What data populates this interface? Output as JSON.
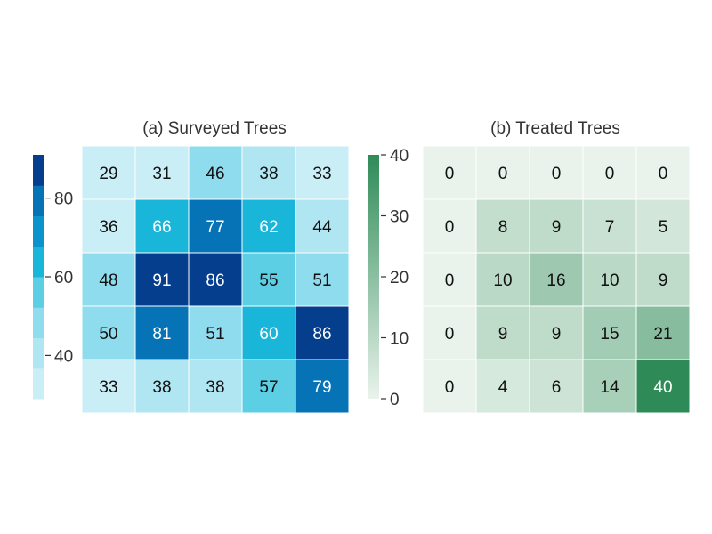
{
  "chart_data": [
    {
      "type": "heatmap",
      "title": "(a) Surveyed Trees",
      "rows": 5,
      "cols": 5,
      "values": [
        [
          29,
          31,
          46,
          38,
          33
        ],
        [
          36,
          66,
          77,
          62,
          44
        ],
        [
          48,
          91,
          86,
          55,
          51
        ],
        [
          50,
          81,
          51,
          60,
          86
        ],
        [
          33,
          38,
          38,
          57,
          79
        ]
      ],
      "colorbar": {
        "range": [
          29,
          91
        ],
        "ticks": [
          40,
          60,
          80
        ],
        "tick_labels": [
          "40",
          "60",
          "80"
        ],
        "side": "left",
        "discrete": true,
        "levels": 8
      },
      "colormap": [
        "#c9eef6",
        "#b0e5f2",
        "#8edcee",
        "#5ccfe5",
        "#1ab6d9",
        "#0a94cb",
        "#0573b5",
        "#043e8d"
      ],
      "text_color_dark": "#111111",
      "text_color_light": "#ffffff"
    },
    {
      "type": "heatmap",
      "title": "(b) Treated Trees",
      "rows": 5,
      "cols": 5,
      "values": [
        [
          0,
          0,
          0,
          0,
          0
        ],
        [
          0,
          8,
          9,
          7,
          5
        ],
        [
          0,
          10,
          16,
          10,
          9
        ],
        [
          0,
          9,
          9,
          15,
          21
        ],
        [
          0,
          4,
          6,
          14,
          40
        ]
      ],
      "colorbar": {
        "range": [
          0,
          40
        ],
        "ticks": [
          0,
          10,
          20,
          30,
          40
        ],
        "tick_labels": [
          "0",
          "10",
          "20",
          "30",
          "40"
        ],
        "side": "left",
        "discrete": false
      },
      "colormap": [
        "#e9f3ec",
        "#2e8b57"
      ],
      "text_color_dark": "#111111",
      "text_color_light": "#ffffff"
    }
  ]
}
